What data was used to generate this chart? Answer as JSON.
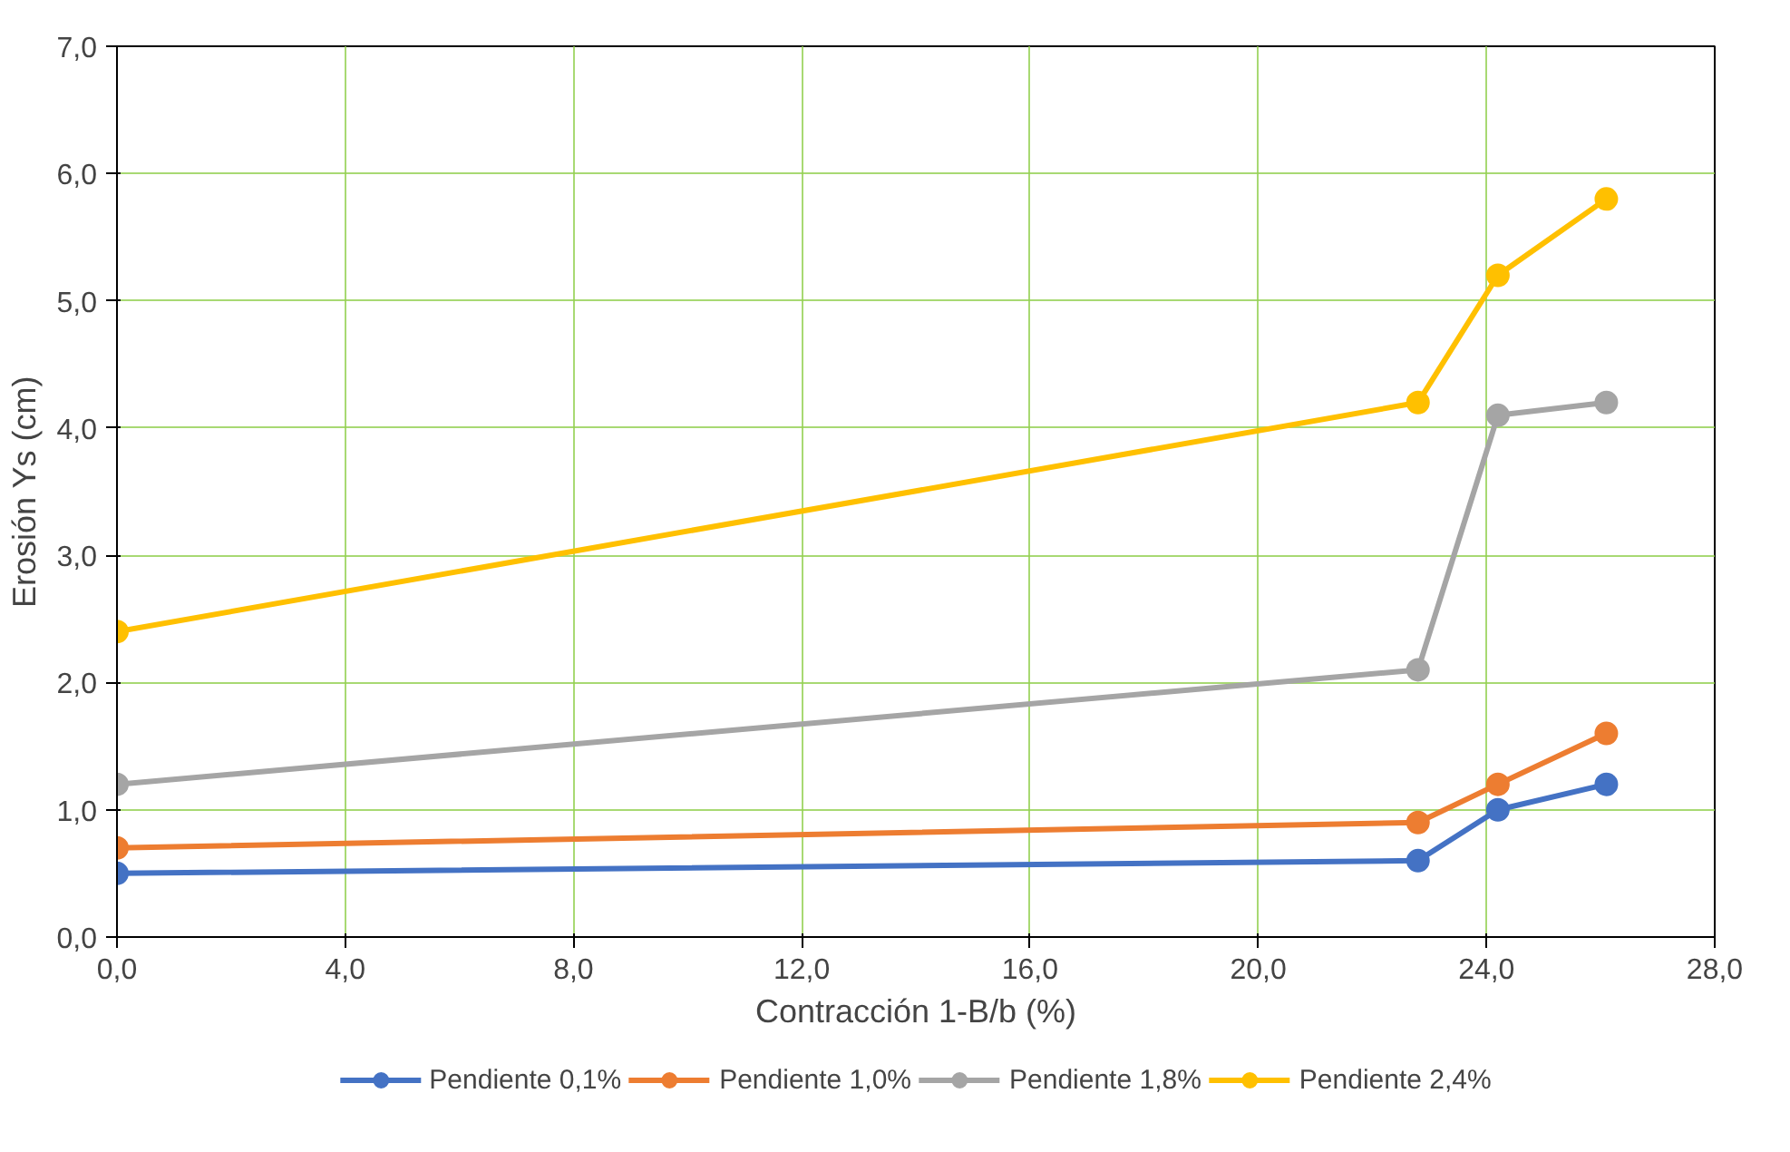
{
  "chart_data": {
    "type": "line",
    "xlabel": "Contracción 1-B/b (%)",
    "ylabel": "Erosión Ys (cm)",
    "x": [
      0,
      22.8,
      24.2,
      26.1
    ],
    "series": [
      {
        "name": "Pendiente 0,1%",
        "color": "#4472c4",
        "values": [
          0.5,
          0.6,
          1.0,
          1.2
        ]
      },
      {
        "name": "Pendiente 1,0%",
        "color": "#ed7d31",
        "values": [
          0.7,
          0.9,
          1.2,
          1.6
        ]
      },
      {
        "name": "Pendiente 1,8%",
        "color": "#a5a5a5",
        "values": [
          1.2,
          2.1,
          4.1,
          4.2
        ]
      },
      {
        "name": "Pendiente 2,4%",
        "color": "#ffc000",
        "values": [
          2.4,
          4.2,
          5.2,
          5.8
        ]
      }
    ],
    "xlim": [
      0,
      28
    ],
    "xticks": [
      {
        "value": 0,
        "label": "0,0"
      },
      {
        "value": 4,
        "label": "4,0"
      },
      {
        "value": 8,
        "label": "8,0"
      },
      {
        "value": 12,
        "label": "12,0"
      },
      {
        "value": 16,
        "label": "16,0"
      },
      {
        "value": 20,
        "label": "20,0"
      },
      {
        "value": 24,
        "label": "24,0"
      },
      {
        "value": 28,
        "label": "28,0"
      }
    ],
    "ylim": [
      0,
      7
    ],
    "yticks": [
      {
        "value": 0,
        "label": "0,0"
      },
      {
        "value": 1,
        "label": "1,0"
      },
      {
        "value": 2,
        "label": "2,0"
      },
      {
        "value": 3,
        "label": "3,0"
      },
      {
        "value": 4,
        "label": "4,0"
      },
      {
        "value": 5,
        "label": "5,0"
      },
      {
        "value": 6,
        "label": "6,0"
      },
      {
        "value": 7,
        "label": "7,0"
      }
    ],
    "grid": true,
    "legend": "bottom",
    "marker": "circle",
    "line_style": "solid"
  }
}
